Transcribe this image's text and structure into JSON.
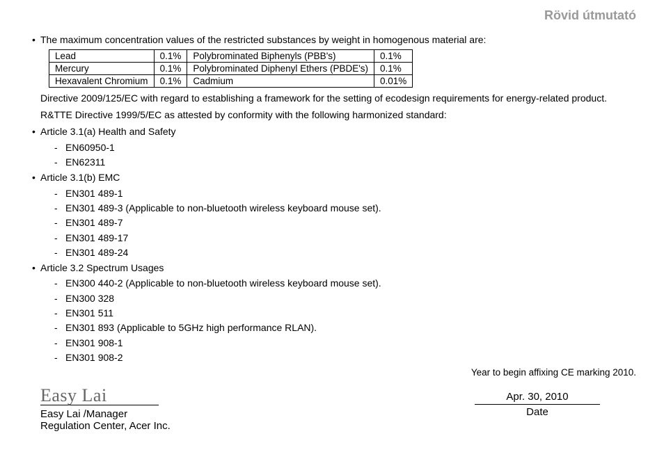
{
  "header": {
    "title": "Rövid útmutató"
  },
  "intro_bullet": "The maximum concentration values of the restricted substances by weight in homogenous material are:",
  "table": {
    "rows": [
      {
        "n1": "Lead",
        "v1": "0.1%",
        "n2": "Polybrominated Biphenyls (PBB's)",
        "v2": "0.1%"
      },
      {
        "n1": "Mercury",
        "v1": "0.1%",
        "n2": "Polybrominated Diphenyl Ethers (PBDE's)",
        "v2": "0.1%"
      },
      {
        "n1": "Hexavalent Chromium",
        "v1": "0.1%",
        "n2": "Cadmium",
        "v2": "0.01%"
      }
    ]
  },
  "directive_para": "Directive 2009/125/EC with regard to establishing a framework for the setting of ecodesign requirements for energy-related product.",
  "rtte_para": "R&TTE Directive 1999/5/EC as attested by conformity with the following harmonized standard:",
  "articles": [
    {
      "title": "Article 3.1(a) Health and Safety",
      "items": [
        "EN60950-1",
        "EN62311"
      ]
    },
    {
      "title": "Article 3.1(b) EMC",
      "items": [
        "EN301 489-1",
        "EN301 489-3 (Applicable to non-bluetooth wireless keyboard mouse set).",
        "EN301 489-7",
        "EN301 489-17",
        "EN301 489-24"
      ]
    },
    {
      "title": "Article 3.2 Spectrum Usages",
      "items": [
        "EN300 440-2  (Applicable to non-bluetooth wireless keyboard mouse set).",
        "EN300 328",
        "EN301 511",
        "EN301 893 (Applicable to 5GHz high performance RLAN).",
        "EN301 908-1",
        "EN301 908-2"
      ]
    }
  ],
  "ce_note": "Year to begin affixing CE marking 2010.",
  "signature": {
    "script": "Easy Lai",
    "name_line": "Easy Lai /Manager",
    "org_line": "Regulation Center, Acer Inc."
  },
  "date": {
    "value": "Apr. 30, 2010",
    "label": "Date"
  }
}
